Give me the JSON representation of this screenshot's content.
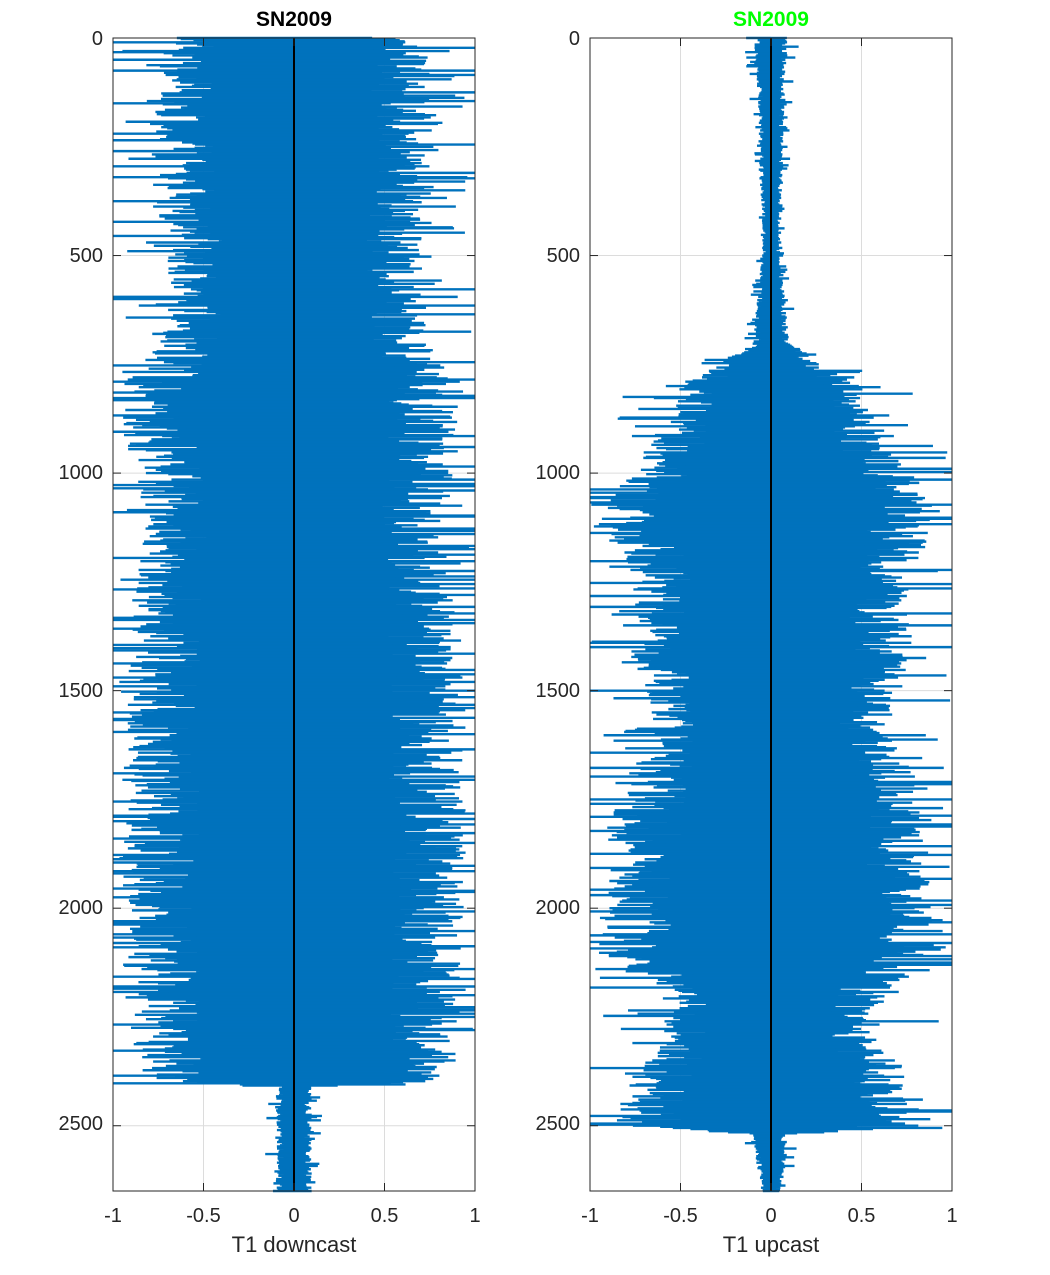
{
  "chart_data": [
    {
      "type": "bar",
      "orientation": "horizontal",
      "title": "SN2009",
      "title_color": "#000000",
      "xlabel": "T1 downcast",
      "ylabel": "",
      "xlim": [
        -1,
        1
      ],
      "ylim": [
        0,
        2650
      ],
      "y_reversed": true,
      "xticks": [
        "-1",
        "-0.5",
        "0",
        "0.5",
        "1"
      ],
      "yticks": [
        "0",
        "500",
        "1000",
        "1500",
        "2000",
        "2500"
      ],
      "grid": true,
      "bar_color": "#0072BD",
      "zero_line_color": "#000000",
      "envelope_profile": {
        "depth": [
          0,
          100,
          200,
          300,
          400,
          500,
          600,
          700,
          800,
          900,
          1000,
          1100,
          1200,
          1300,
          1400,
          1500,
          1600,
          1700,
          1800,
          1900,
          2000,
          2100,
          2200,
          2300,
          2400,
          2410,
          2500,
          2600,
          2650
        ],
        "amplitude": [
          0.75,
          0.75,
          0.8,
          0.8,
          0.75,
          0.7,
          0.7,
          0.75,
          0.95,
          0.95,
          0.9,
          0.85,
          0.85,
          0.9,
          0.9,
          0.95,
          0.95,
          0.95,
          0.95,
          0.95,
          0.95,
          0.95,
          0.95,
          0.9,
          0.9,
          0.1,
          0.1,
          0.1,
          0.1
        ]
      }
    },
    {
      "type": "bar",
      "orientation": "horizontal",
      "title": "SN2009",
      "title_color": "#00FF00",
      "xlabel": "T1 upcast",
      "ylabel": "",
      "xlim": [
        -1,
        1
      ],
      "ylim": [
        0,
        2650
      ],
      "y_reversed": true,
      "xticks": [
        "-1",
        "-0.5",
        "0",
        "0.5",
        "1"
      ],
      "yticks": [
        "0",
        "500",
        "1000",
        "1500",
        "2000",
        "2500"
      ],
      "grid": true,
      "bar_color": "#0072BD",
      "zero_line_color": "#000000",
      "envelope_profile": {
        "depth": [
          0,
          100,
          200,
          300,
          400,
          500,
          600,
          700,
          800,
          900,
          1000,
          1100,
          1200,
          1300,
          1400,
          1500,
          1600,
          1700,
          1800,
          1900,
          2000,
          2100,
          2200,
          2300,
          2400,
          2500,
          2520,
          2600,
          2650
        ],
        "amplitude": [
          0.1,
          0.08,
          0.07,
          0.07,
          0.05,
          0.05,
          0.08,
          0.1,
          0.5,
          0.6,
          0.8,
          0.95,
          0.85,
          0.75,
          0.8,
          0.7,
          0.65,
          0.8,
          0.9,
          0.9,
          0.95,
          0.95,
          0.6,
          0.6,
          0.8,
          0.9,
          0.1,
          0.08,
          0.05
        ]
      }
    }
  ]
}
